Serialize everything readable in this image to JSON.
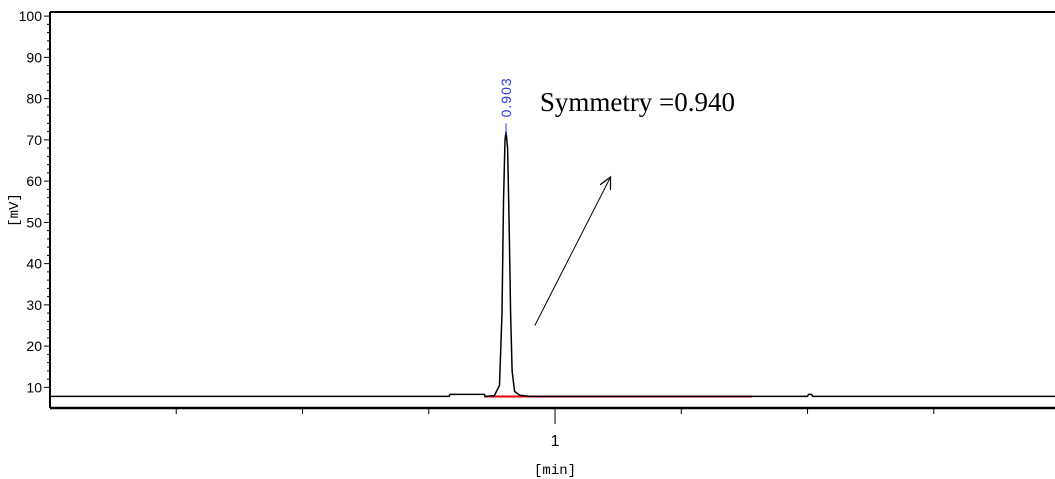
{
  "chart_data": {
    "type": "line",
    "title": "",
    "xlabel": "[min]",
    "ylabel": "[mV]",
    "xlim": [
      0.0,
      1.99
    ],
    "ylim": [
      5,
      101
    ],
    "x_ticks": [
      1
    ],
    "x_tick_labels": [
      "1"
    ],
    "x_minor_ticks": [
      0.25,
      0.5,
      0.75,
      1.25,
      1.5,
      1.75
    ],
    "y_ticks": [
      10,
      20,
      30,
      40,
      50,
      60,
      70,
      80,
      90,
      100
    ],
    "y_tick_labels": [
      "10",
      "20",
      "30",
      "40",
      "50",
      "60",
      "70",
      "80",
      "90",
      "100"
    ],
    "grid": false,
    "series": [
      {
        "color": "#000000",
        "x": [
          0.0,
          0.79,
          0.792,
          0.86,
          0.862,
          0.88,
          0.89,
          0.895,
          0.898,
          0.901,
          0.903,
          0.906,
          0.909,
          0.912,
          0.915,
          0.92,
          0.93,
          0.95,
          1.5,
          1.502,
          1.508,
          1.51,
          1.99
        ],
        "y": [
          7.8,
          7.8,
          8.3,
          8.3,
          7.8,
          8.0,
          10.5,
          28.0,
          55.0,
          70.0,
          72.0,
          68.0,
          50.0,
          28.0,
          14.0,
          9.0,
          8.1,
          7.8,
          7.8,
          8.3,
          8.3,
          7.8,
          7.8
        ]
      }
    ],
    "baseline": {
      "color": "#e8000f",
      "x_start": 0.86,
      "x_end": 1.39,
      "y": 7.8
    },
    "peak_labels": [
      {
        "text": "0.903",
        "x": 0.903,
        "y": 74,
        "color": "#2e3bd6"
      }
    ],
    "annotations": [
      {
        "text": "Symmetry =0.940",
        "x": 0.96,
        "y": 77
      }
    ],
    "arrow": {
      "from": [
        0.96,
        25
      ],
      "to": [
        1.11,
        61
      ]
    }
  }
}
